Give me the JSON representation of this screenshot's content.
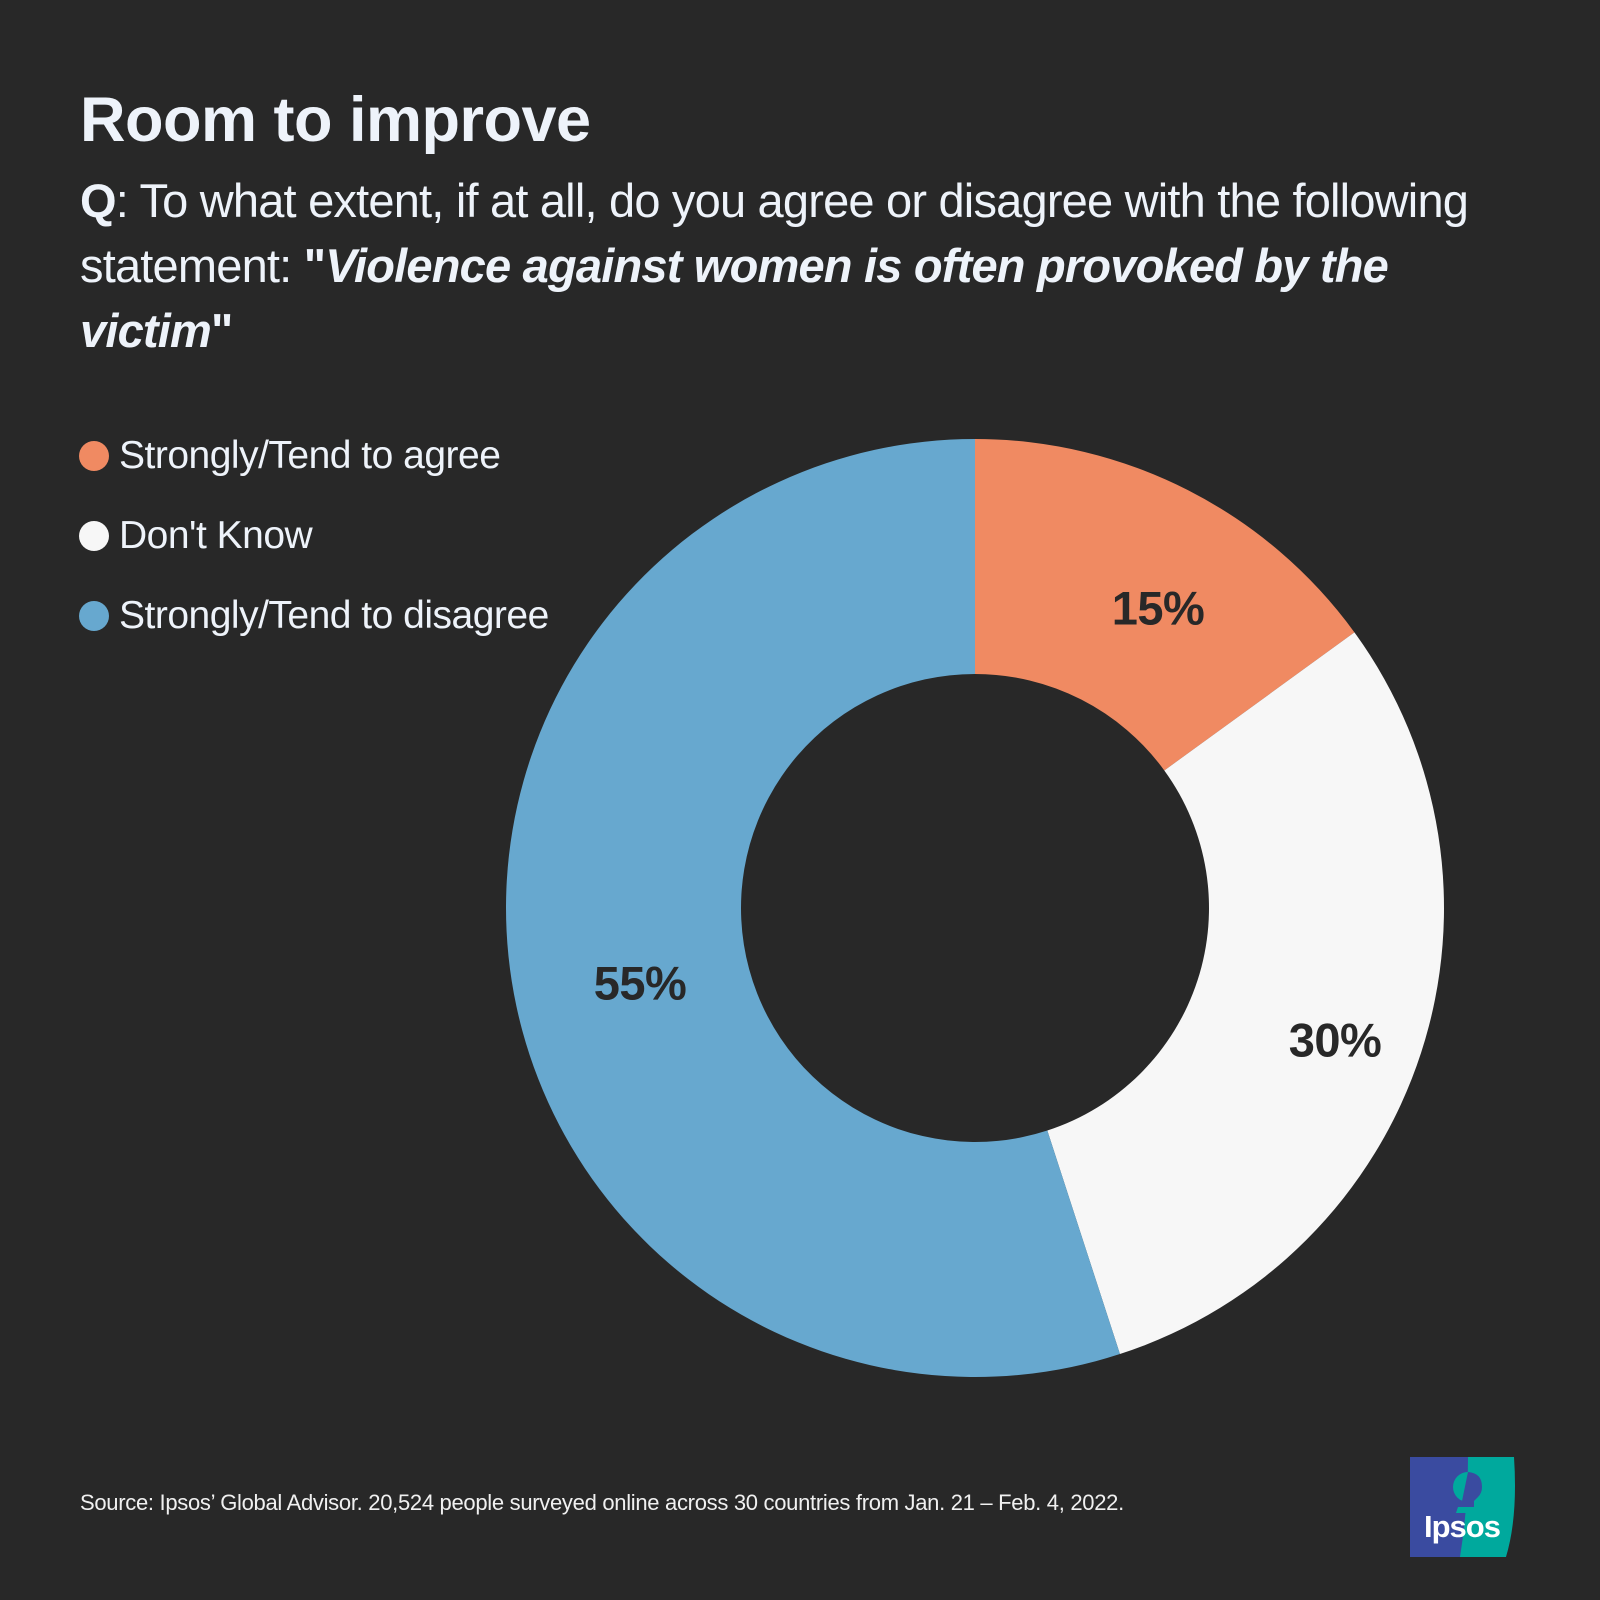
{
  "header": {
    "title": "Room to improve",
    "question_prefix": "Q",
    "question_colon": ": ",
    "question_text": "To what extent, if at all, do you agree or disagree with the following statement: ",
    "open_quote": "\"",
    "statement": "Violence against women is often provoked by the victim",
    "close_quote": "\""
  },
  "legend": {
    "items": [
      {
        "label": "Strongly/Tend to agree",
        "color": "#f08a62"
      },
      {
        "label": "Don't Know",
        "color": "#f7f7f7"
      },
      {
        "label": "Strongly/Tend to disagree",
        "color": "#67a8cf"
      }
    ]
  },
  "labels": {
    "agree": "15%",
    "dont_know": "30%",
    "disagree": "55%"
  },
  "footer": {
    "source": "Source: Ipsos’ Global Advisor. 20,524 people surveyed online across 30 countries from Jan. 21 – Feb. 4, 2022.",
    "logo_text": "Ipsos"
  },
  "colors": {
    "background": "#282828",
    "agree": "#f08a62",
    "dont_know": "#f7f7f7",
    "disagree": "#67a8cf",
    "logo_blue": "#3a4ba0",
    "logo_teal": "#00a99d"
  },
  "chart_data": {
    "type": "pie",
    "subtype": "donut",
    "title": "Room to improve",
    "subtitle": "Q: To what extent, if at all, do you agree or disagree with the following statement: \"Violence against women is often provoked by the victim\"",
    "categories": [
      "Strongly/Tend to agree",
      "Don't Know",
      "Strongly/Tend to disagree"
    ],
    "values": [
      15,
      30,
      55
    ],
    "value_labels": [
      "15%",
      "30%",
      "55%"
    ],
    "colors": [
      "#f08a62",
      "#f7f7f7",
      "#67a8cf"
    ],
    "start_angle": "12 o'clock",
    "direction": "clockwise",
    "legend_position": "top-left",
    "unit": "%"
  }
}
